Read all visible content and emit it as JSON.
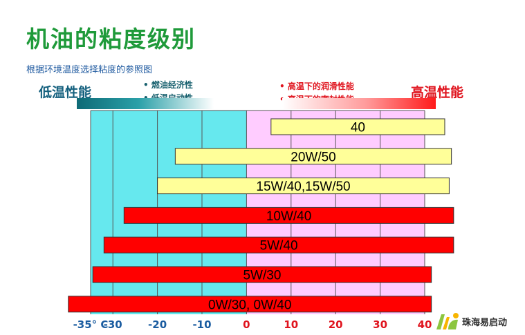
{
  "slide": {
    "title": "机油的粘度级别",
    "subtitle": "根据环境温度选择粘度的参照图",
    "low_caption": "低温性能",
    "high_caption": "高温性能",
    "low_bullets": [
      "燃油经济性",
      "低温启动性"
    ],
    "high_bullets": [
      "高温下的润滑性能",
      "高温下的密封性能"
    ],
    "logo_text": "珠海易启动"
  },
  "colors": {
    "title": "#1f9a3a",
    "cold_zone": "#66e8ee",
    "warm_zone": "#ffccff",
    "grid": "#555555",
    "bar_yellow": "#ffff99",
    "bar_red": "#ff0000",
    "tick_blue": "#1a5ca0",
    "tick_red": "#e0141e"
  },
  "chart_data": {
    "type": "bar",
    "orientation": "horizontal range",
    "x_unit": "°C",
    "xlim": [
      -35,
      40
    ],
    "grid": true,
    "x_ticks": [
      {
        "value": -35,
        "label": "-35° C",
        "color": "tick_blue"
      },
      {
        "value": -30,
        "label": "-30",
        "color": "tick_blue"
      },
      {
        "value": -20,
        "label": "-20",
        "color": "tick_blue"
      },
      {
        "value": -10,
        "label": "-10",
        "color": "tick_blue"
      },
      {
        "value": 0,
        "label": "0",
        "color": "tick_red"
      },
      {
        "value": 10,
        "label": "10",
        "color": "tick_red"
      },
      {
        "value": 20,
        "label": "20",
        "color": "tick_red"
      },
      {
        "value": 30,
        "label": "30",
        "color": "tick_red"
      },
      {
        "value": 40,
        "label": "40",
        "color": "tick_red"
      }
    ],
    "bars": [
      {
        "label": "40",
        "from": 5.5,
        "to": 44.5,
        "color": "bar_yellow"
      },
      {
        "label": "20W/50",
        "from": -16,
        "to": 46,
        "color": "bar_yellow"
      },
      {
        "label": "15W/40,15W/50",
        "from": -20,
        "to": 45.5,
        "color": "bar_yellow"
      },
      {
        "label": "10W/40",
        "from": -27.5,
        "to": 46.5,
        "color": "bar_red"
      },
      {
        "label": "5W/40",
        "from": -32,
        "to": 46.5,
        "color": "bar_red"
      },
      {
        "label": "5W/30",
        "from": -34.5,
        "to": 41.5,
        "color": "bar_red"
      },
      {
        "label": "0W/30, 0W/40",
        "from": -40,
        "to": 41.5,
        "color": "bar_red"
      }
    ]
  }
}
